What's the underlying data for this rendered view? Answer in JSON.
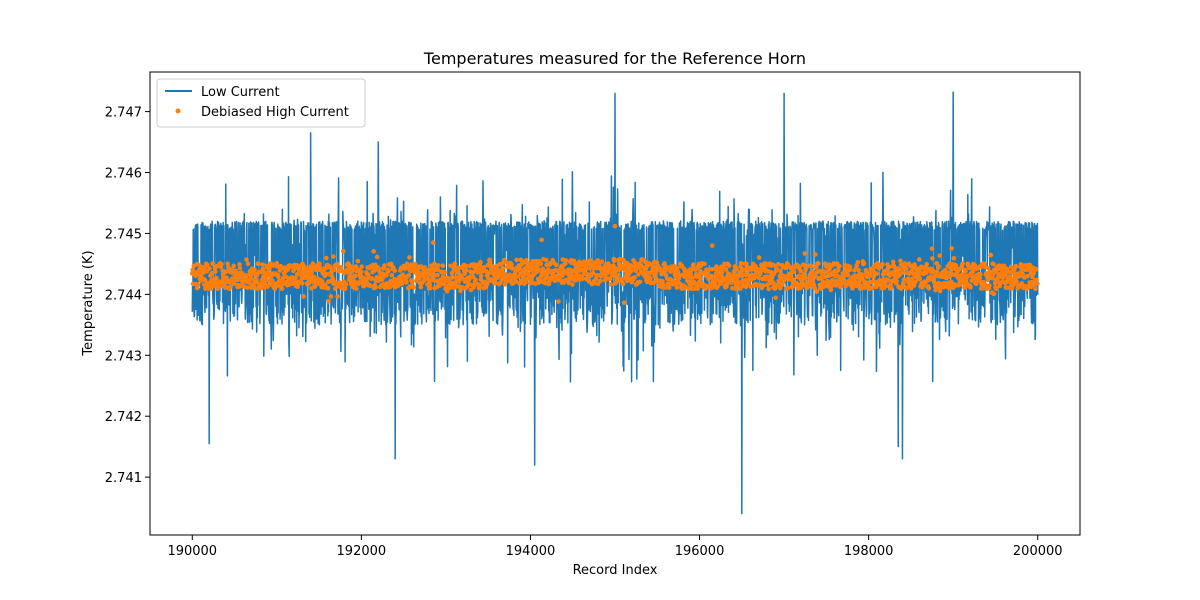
{
  "chart_data": {
    "type": "line",
    "title": "Temperatures measured for the Reference Horn",
    "xlabel": "Record Index",
    "ylabel": "Temperature (K)",
    "xlim": [
      189500,
      200500
    ],
    "ylim": [
      2.74005,
      2.74765
    ],
    "xticks": [
      190000,
      192000,
      194000,
      196000,
      198000,
      200000
    ],
    "xtick_labels": [
      "190000",
      "192000",
      "194000",
      "196000",
      "198000",
      "200000"
    ],
    "yticks": [
      2.741,
      2.742,
      2.743,
      2.744,
      2.745,
      2.746,
      2.747
    ],
    "ytick_labels": [
      "2.741",
      "2.742",
      "2.743",
      "2.744",
      "2.745",
      "2.746",
      "2.747"
    ],
    "legend_position": "upper-left",
    "series": [
      {
        "name": "Low Current",
        "kind": "line",
        "color": "#1f77b4",
        "x_range": [
          190000,
          200000
        ],
        "band": [
          2.7437,
          2.7452
        ],
        "center": 2.7443,
        "spikes": [
          {
            "x": 191400,
            "y": 2.74665
          },
          {
            "x": 192200,
            "y": 2.7465
          },
          {
            "x": 195000,
            "y": 2.7473
          },
          {
            "x": 197000,
            "y": 2.7473
          },
          {
            "x": 199000,
            "y": 2.74732
          },
          {
            "x": 196500,
            "y": 2.7404
          },
          {
            "x": 192400,
            "y": 2.7413
          },
          {
            "x": 194050,
            "y": 2.7412
          },
          {
            "x": 190200,
            "y": 2.74155
          },
          {
            "x": 198350,
            "y": 2.7415
          },
          {
            "x": 198400,
            "y": 2.7413
          }
        ]
      },
      {
        "name": "Debiased High Current",
        "kind": "scatter",
        "color": "#ff7f0e",
        "x_range": [
          190000,
          200000
        ],
        "center": 2.7443,
        "band": [
          2.744,
          2.7447
        ],
        "outliers": [
          {
            "x": 195000,
            "y": 2.74512
          },
          {
            "x": 192850,
            "y": 2.74485
          },
          {
            "x": 196150,
            "y": 2.7448
          },
          {
            "x": 198750,
            "y": 2.74475
          }
        ]
      }
    ]
  }
}
